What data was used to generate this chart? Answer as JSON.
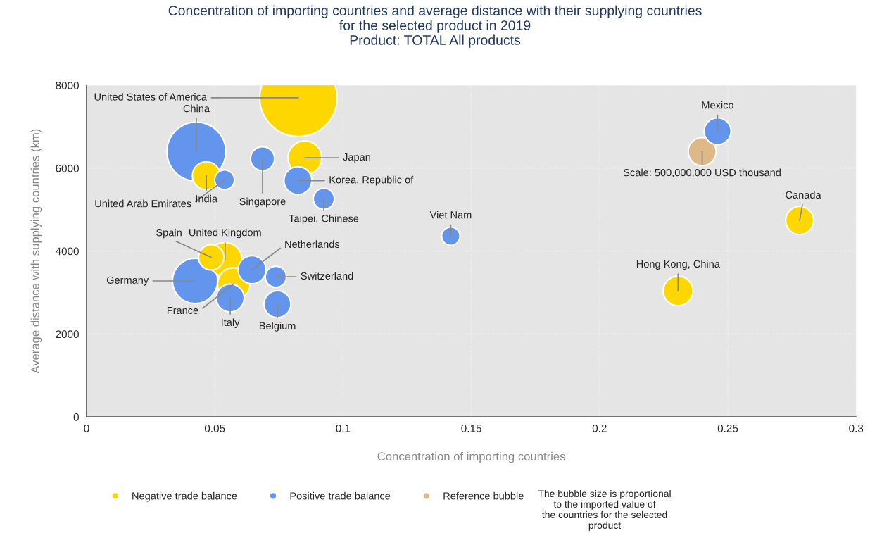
{
  "chart_data": {
    "type": "bubble",
    "title": "Concentration of importing countries and average distance with their supplying countries\nfor the selected product in 2019\nProduct: TOTAL All products",
    "xlabel": "Concentration of importing countries",
    "ylabel": "Average distance with supplying countries (km)",
    "xlim": [
      0,
      0.3
    ],
    "xticks": [
      0,
      0.05,
      0.1,
      0.15,
      0.2,
      0.25,
      0.3
    ],
    "ylim": [
      0,
      8000
    ],
    "yticks": [
      0,
      2000,
      4000,
      6000,
      8000
    ],
    "grid": true,
    "legend": "bottom",
    "series": [
      {
        "name": "Negative trade balance",
        "color": "#ffd700",
        "x": [
          0.0826,
          0.0467,
          0.0851,
          0.278,
          0.2306,
          0.0486,
          0.054,
          0.0574
        ],
        "values": [
          7700,
          5820,
          6250,
          4740,
          3040,
          3850,
          3800,
          3210
        ],
        "sizes": [
          1,
          0.13,
          0.19,
          0.13,
          0.146,
          0.107,
          0.19,
          0.175
        ]
      },
      {
        "name": "Positive trade balance",
        "color": "#6495ed",
        "x": [
          0.0428,
          0.0538,
          0.0686,
          0.0824,
          0.0925,
          0.142,
          0.246,
          0.0645,
          0.0423,
          0.0738,
          0.056,
          0.0744
        ],
        "values": [
          6400,
          5720,
          6230,
          5700,
          5260,
          4360,
          6890,
          3550,
          3280,
          3380,
          2870,
          2720
        ],
        "sizes": [
          0.58,
          0.065,
          0.096,
          0.13,
          0.074,
          0.056,
          0.12,
          0.13,
          0.34,
          0.074,
          0.13,
          0.12
        ]
      },
      {
        "name": "Reference bubble",
        "color": "#deb887",
        "x": [
          0.24
        ],
        "values": [
          6400
        ],
        "sizes": [
          0.13
        ]
      }
    ],
    "annotations": [
      {
        "text": "United States of America",
        "x": 0.0826,
        "y": 7700
      },
      {
        "text": "China",
        "x": 0.0428,
        "y": 6400
      },
      {
        "text": "United Arab Emirates",
        "x": 0.0538,
        "y": 5720
      },
      {
        "text": "India",
        "x": 0.0467,
        "y": 5820
      },
      {
        "text": "Singapore",
        "x": 0.0686,
        "y": 6230
      },
      {
        "text": "Japan",
        "x": 0.0851,
        "y": 6250
      },
      {
        "text": "Korea, Republic of",
        "x": 0.0824,
        "y": 5700
      },
      {
        "text": "Taipei, Chinese",
        "x": 0.0925,
        "y": 5260
      },
      {
        "text": "Viet Nam",
        "x": 0.142,
        "y": 4360
      },
      {
        "text": "Mexico",
        "x": 0.246,
        "y": 6890
      },
      {
        "text": "Canada",
        "x": 0.278,
        "y": 4740
      },
      {
        "text": "Hong Kong, China",
        "x": 0.2306,
        "y": 3040
      },
      {
        "text": "Spain",
        "x": 0.0486,
        "y": 3850
      },
      {
        "text": "United Kingdom",
        "x": 0.054,
        "y": 3800
      },
      {
        "text": "Netherlands",
        "x": 0.0645,
        "y": 3550
      },
      {
        "text": "Germany",
        "x": 0.0423,
        "y": 3280
      },
      {
        "text": "Switzerland",
        "x": 0.0738,
        "y": 3380
      },
      {
        "text": "France",
        "x": 0.0574,
        "y": 3210
      },
      {
        "text": "Italy",
        "x": 0.056,
        "y": 2870
      },
      {
        "text": "Belgium",
        "x": 0.0744,
        "y": 2720
      },
      {
        "text": "Scale: 500,000,000 USD thousand",
        "x": 0.24,
        "y": 6400
      },
      "The bubble size is proportional\nto the imported value of\nthe countries for the selected\nproduct"
    ]
  }
}
